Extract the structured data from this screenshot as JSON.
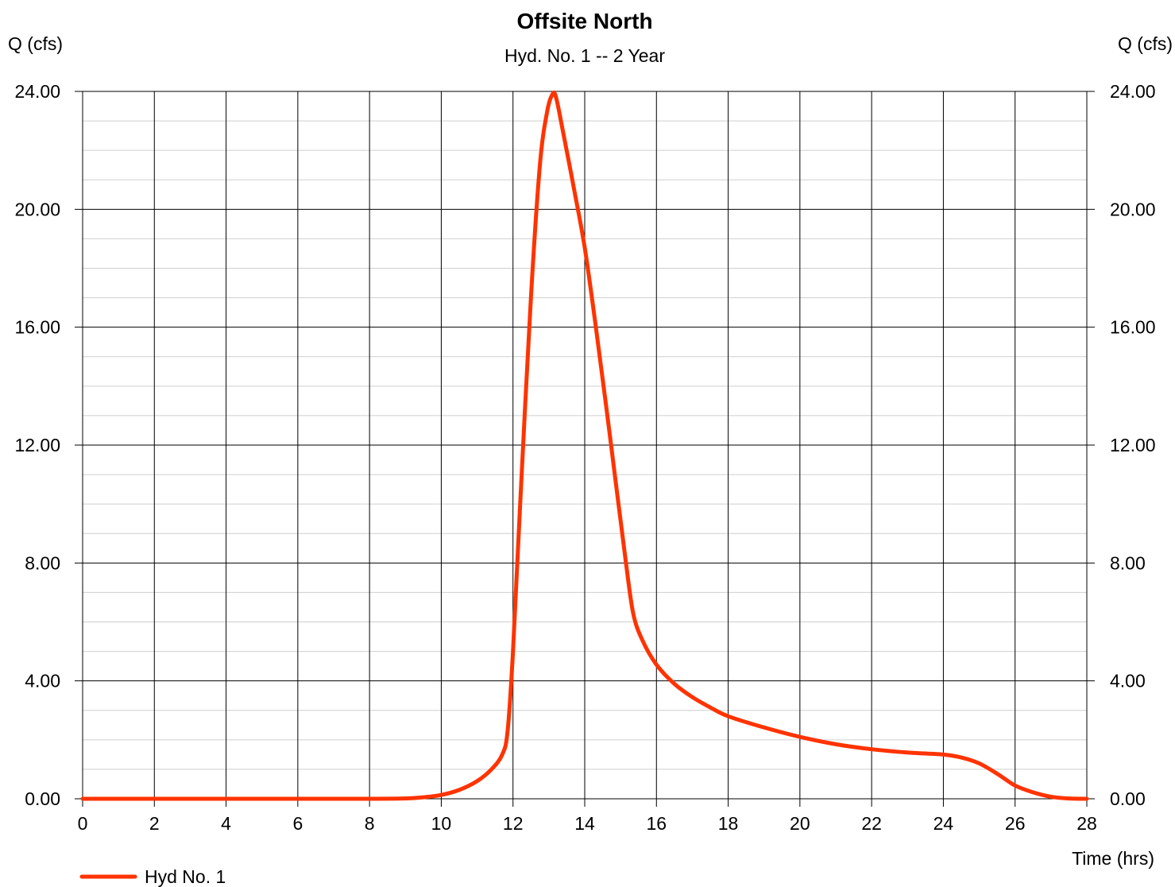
{
  "chart_data": {
    "type": "line",
    "title": "Offsite North",
    "subtitle": "Hyd. No. 1 -- 2 Year",
    "ylabel_left": "Q (cfs)",
    "ylabel_right": "Q (cfs)",
    "xlabel": "Time (hrs)",
    "xlim": [
      0,
      28
    ],
    "ylim": [
      0,
      24
    ],
    "x_ticks": [
      0,
      2,
      4,
      6,
      8,
      10,
      12,
      14,
      16,
      18,
      20,
      22,
      24,
      26,
      28
    ],
    "y_ticks": [
      "0.00",
      "4.00",
      "8.00",
      "12.00",
      "16.00",
      "20.00",
      "24.00"
    ],
    "y_minor_step": 1,
    "grid": true,
    "legend_position": "bottom-left",
    "series": [
      {
        "name": "Hyd No. 1",
        "color": "#ff3300",
        "points": [
          [
            0,
            0
          ],
          [
            2,
            0
          ],
          [
            4,
            0
          ],
          [
            6,
            0
          ],
          [
            8,
            0
          ],
          [
            9,
            0.01
          ],
          [
            9.5,
            0.05
          ],
          [
            10,
            0.13
          ],
          [
            10.5,
            0.3
          ],
          [
            11,
            0.6
          ],
          [
            11.4,
            1.0
          ],
          [
            11.7,
            1.5
          ],
          [
            11.85,
            2.3
          ],
          [
            12.0,
            5.0
          ],
          [
            12.2,
            10.0
          ],
          [
            12.5,
            17.0
          ],
          [
            12.75,
            21.5
          ],
          [
            12.95,
            23.3
          ],
          [
            13.1,
            23.9
          ],
          [
            13.2,
            23.8
          ],
          [
            13.4,
            22.6
          ],
          [
            13.7,
            20.7
          ],
          [
            14.0,
            18.7
          ],
          [
            14.3,
            16.1
          ],
          [
            14.6,
            13.3
          ],
          [
            14.9,
            10.4
          ],
          [
            15.15,
            8.0
          ],
          [
            15.35,
            6.3
          ],
          [
            15.6,
            5.4
          ],
          [
            16.0,
            4.55
          ],
          [
            16.5,
            3.9
          ],
          [
            17.0,
            3.45
          ],
          [
            17.5,
            3.1
          ],
          [
            18.0,
            2.8
          ],
          [
            19.0,
            2.42
          ],
          [
            20.0,
            2.1
          ],
          [
            21.0,
            1.85
          ],
          [
            22.0,
            1.68
          ],
          [
            23.0,
            1.57
          ],
          [
            24.0,
            1.5
          ],
          [
            24.5,
            1.4
          ],
          [
            25.0,
            1.2
          ],
          [
            25.5,
            0.85
          ],
          [
            26.0,
            0.45
          ],
          [
            26.5,
            0.22
          ],
          [
            27.0,
            0.07
          ],
          [
            27.5,
            0.01
          ],
          [
            28.0,
            0
          ]
        ]
      }
    ]
  }
}
